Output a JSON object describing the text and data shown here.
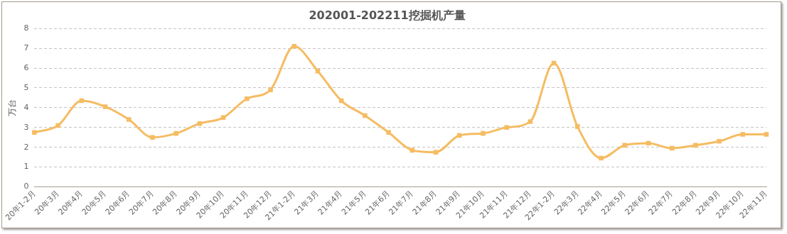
{
  "chart_data": {
    "type": "line",
    "title": "202001-202211挖掘机产量",
    "ylabel": "万台",
    "categories": [
      "20年1-2月",
      "20年3月",
      "20年4月",
      "20年5月",
      "20年6月",
      "20年7月",
      "20年8月",
      "20年9月",
      "20年10月",
      "20年11月",
      "20年12月",
      "21年1-2月",
      "21年3月",
      "21年4月",
      "21年5月",
      "21年6月",
      "21年7月",
      "21年8月",
      "21年9月",
      "21年10月",
      "21年11月",
      "21年12月",
      "22年1-2月",
      "22年3月",
      "22年4月",
      "22年5月",
      "22年6月",
      "22年7月",
      "22年8月",
      "22年9月",
      "22年10月",
      "22年11月"
    ],
    "series": [
      {
        "color": "#f5bc62",
        "values": [
          2.75,
          3.1,
          4.35,
          4.05,
          3.4,
          2.5,
          2.7,
          3.2,
          3.5,
          4.45,
          4.9,
          7.1,
          5.85,
          4.35,
          3.6,
          2.75,
          1.85,
          1.75,
          2.6,
          2.7,
          3.0,
          3.3,
          6.25,
          3.05,
          1.45,
          2.1,
          2.2,
          1.95,
          2.1,
          2.3,
          2.65,
          2.65
        ]
      }
    ],
    "ylim": [
      0,
      8
    ],
    "yticks": [
      0,
      1,
      2,
      3,
      4,
      5,
      6,
      7,
      8
    ],
    "grid": "y",
    "legend": false,
    "marker": "square",
    "line_style": "solid"
  }
}
